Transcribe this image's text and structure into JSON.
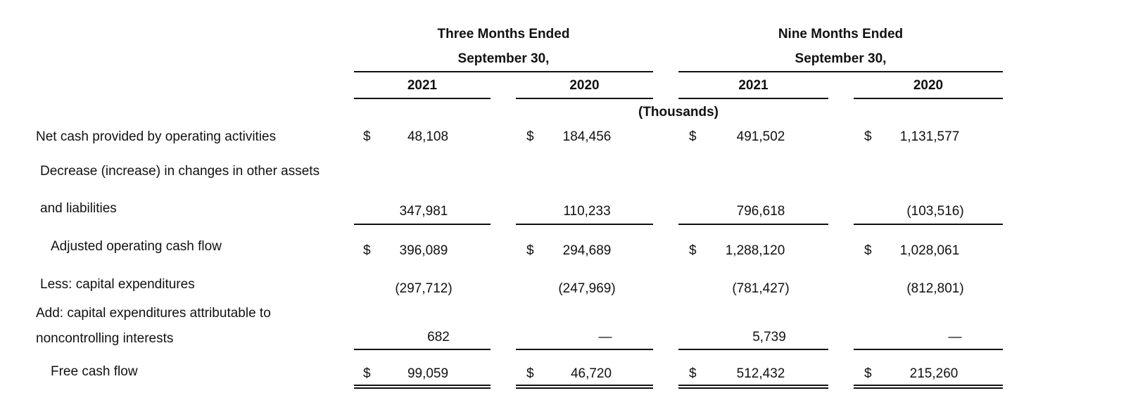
{
  "header": {
    "group1_line1": "Three Months Ended",
    "group1_line2": "September 30,",
    "group2_line1": "Nine Months Ended",
    "group2_line2": "September 30,",
    "years": [
      "2021",
      "2020",
      "2021",
      "2020"
    ],
    "units": "(Thousands)"
  },
  "currency_symbol": "$",
  "rows": [
    {
      "label_lines": [
        "Net cash provided by operating activities"
      ],
      "show_currency": true,
      "values": [
        "48,108",
        "184,456",
        "491,502",
        "1,131,577"
      ]
    },
    {
      "label_lines": [
        "Decrease (increase) in changes in other assets",
        "and liabilities"
      ],
      "show_currency": false,
      "values": [
        "347,981",
        "110,233",
        "796,618",
        "(103,516)"
      ]
    },
    {
      "label_lines": [
        "Adjusted operating cash flow"
      ],
      "show_currency": true,
      "values": [
        "396,089",
        "294,689",
        "1,288,120",
        "1,028,061"
      ]
    },
    {
      "label_lines": [
        "Less: capital expenditures"
      ],
      "show_currency": false,
      "values": [
        "(297,712)",
        "(247,969)",
        "(781,427)",
        "(812,801)"
      ]
    },
    {
      "label_lines": [
        "Add: capital expenditures attributable to",
        "noncontrolling interests"
      ],
      "show_currency": false,
      "values": [
        "682",
        "—",
        "5,739",
        "—"
      ]
    },
    {
      "label_lines": [
        "Free cash flow"
      ],
      "show_currency": true,
      "values": [
        "99,059",
        "46,720",
        "512,432",
        "215,260"
      ]
    }
  ]
}
